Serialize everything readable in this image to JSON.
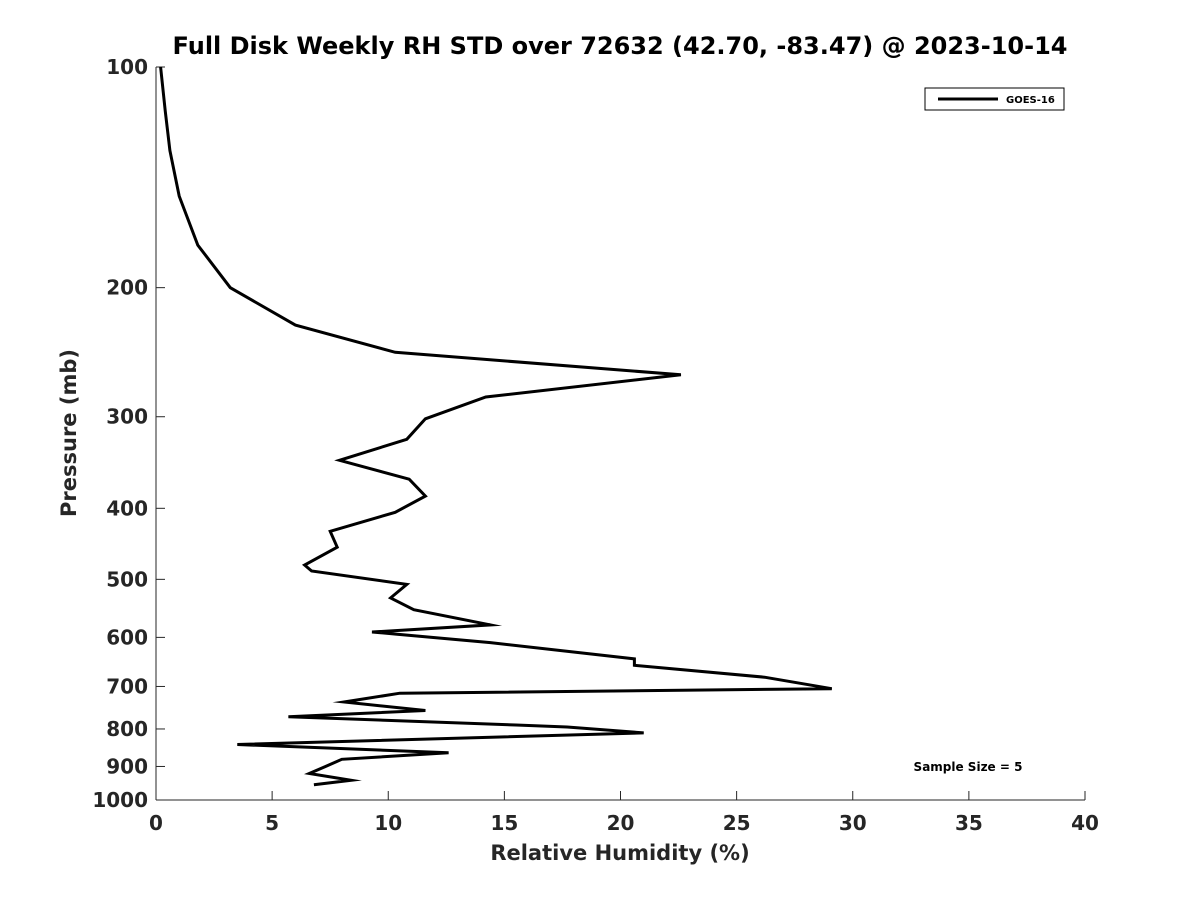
{
  "chart_data": {
    "type": "line",
    "title": "Full Disk Weekly RH STD over 72632 (42.70, -83.47) @ 2023-10-14",
    "xlabel": "Relative Humidity (%)",
    "ylabel": "Pressure (mb)",
    "xlim": [
      0,
      40
    ],
    "ylim": [
      100,
      1000
    ],
    "y_scale": "log",
    "y_inverted": true,
    "x_ticks": [
      0,
      5,
      10,
      15,
      20,
      25,
      30,
      35,
      40
    ],
    "y_ticks": [
      100,
      200,
      300,
      400,
      500,
      600,
      700,
      800,
      900,
      1000
    ],
    "grid": false,
    "legend_position": "top-right",
    "annotation": "Sample Size = 5",
    "series": [
      {
        "name": "GOES-16",
        "color": "#000000",
        "x": [
          0.2,
          0.4,
          0.6,
          1.0,
          1.8,
          3.2,
          6.0,
          10.3,
          22.6,
          14.2,
          11.6,
          10.8,
          7.9,
          10.9,
          11.6,
          10.3,
          7.5,
          7.8,
          6.4,
          6.7,
          10.8,
          10.1,
          11.1,
          14.4,
          9.3,
          14.4,
          20.6,
          20.6,
          26.2,
          29.1,
          10.5,
          8.1,
          11.6,
          5.7,
          15.5,
          17.7,
          21.0,
          3.5,
          12.6,
          8.0,
          7.3,
          6.6,
          8.4,
          6.8
        ],
        "y": [
          100,
          115,
          130,
          150,
          175,
          200,
          225,
          245,
          263,
          282,
          302,
          322,
          344,
          365,
          385,
          405,
          430,
          452,
          478,
          487,
          508,
          530,
          550,
          577,
          590,
          610,
          642,
          655,
          680,
          705,
          715,
          735,
          755,
          770,
          790,
          795,
          810,
          840,
          862,
          880,
          900,
          920,
          940,
          953
        ]
      }
    ]
  }
}
